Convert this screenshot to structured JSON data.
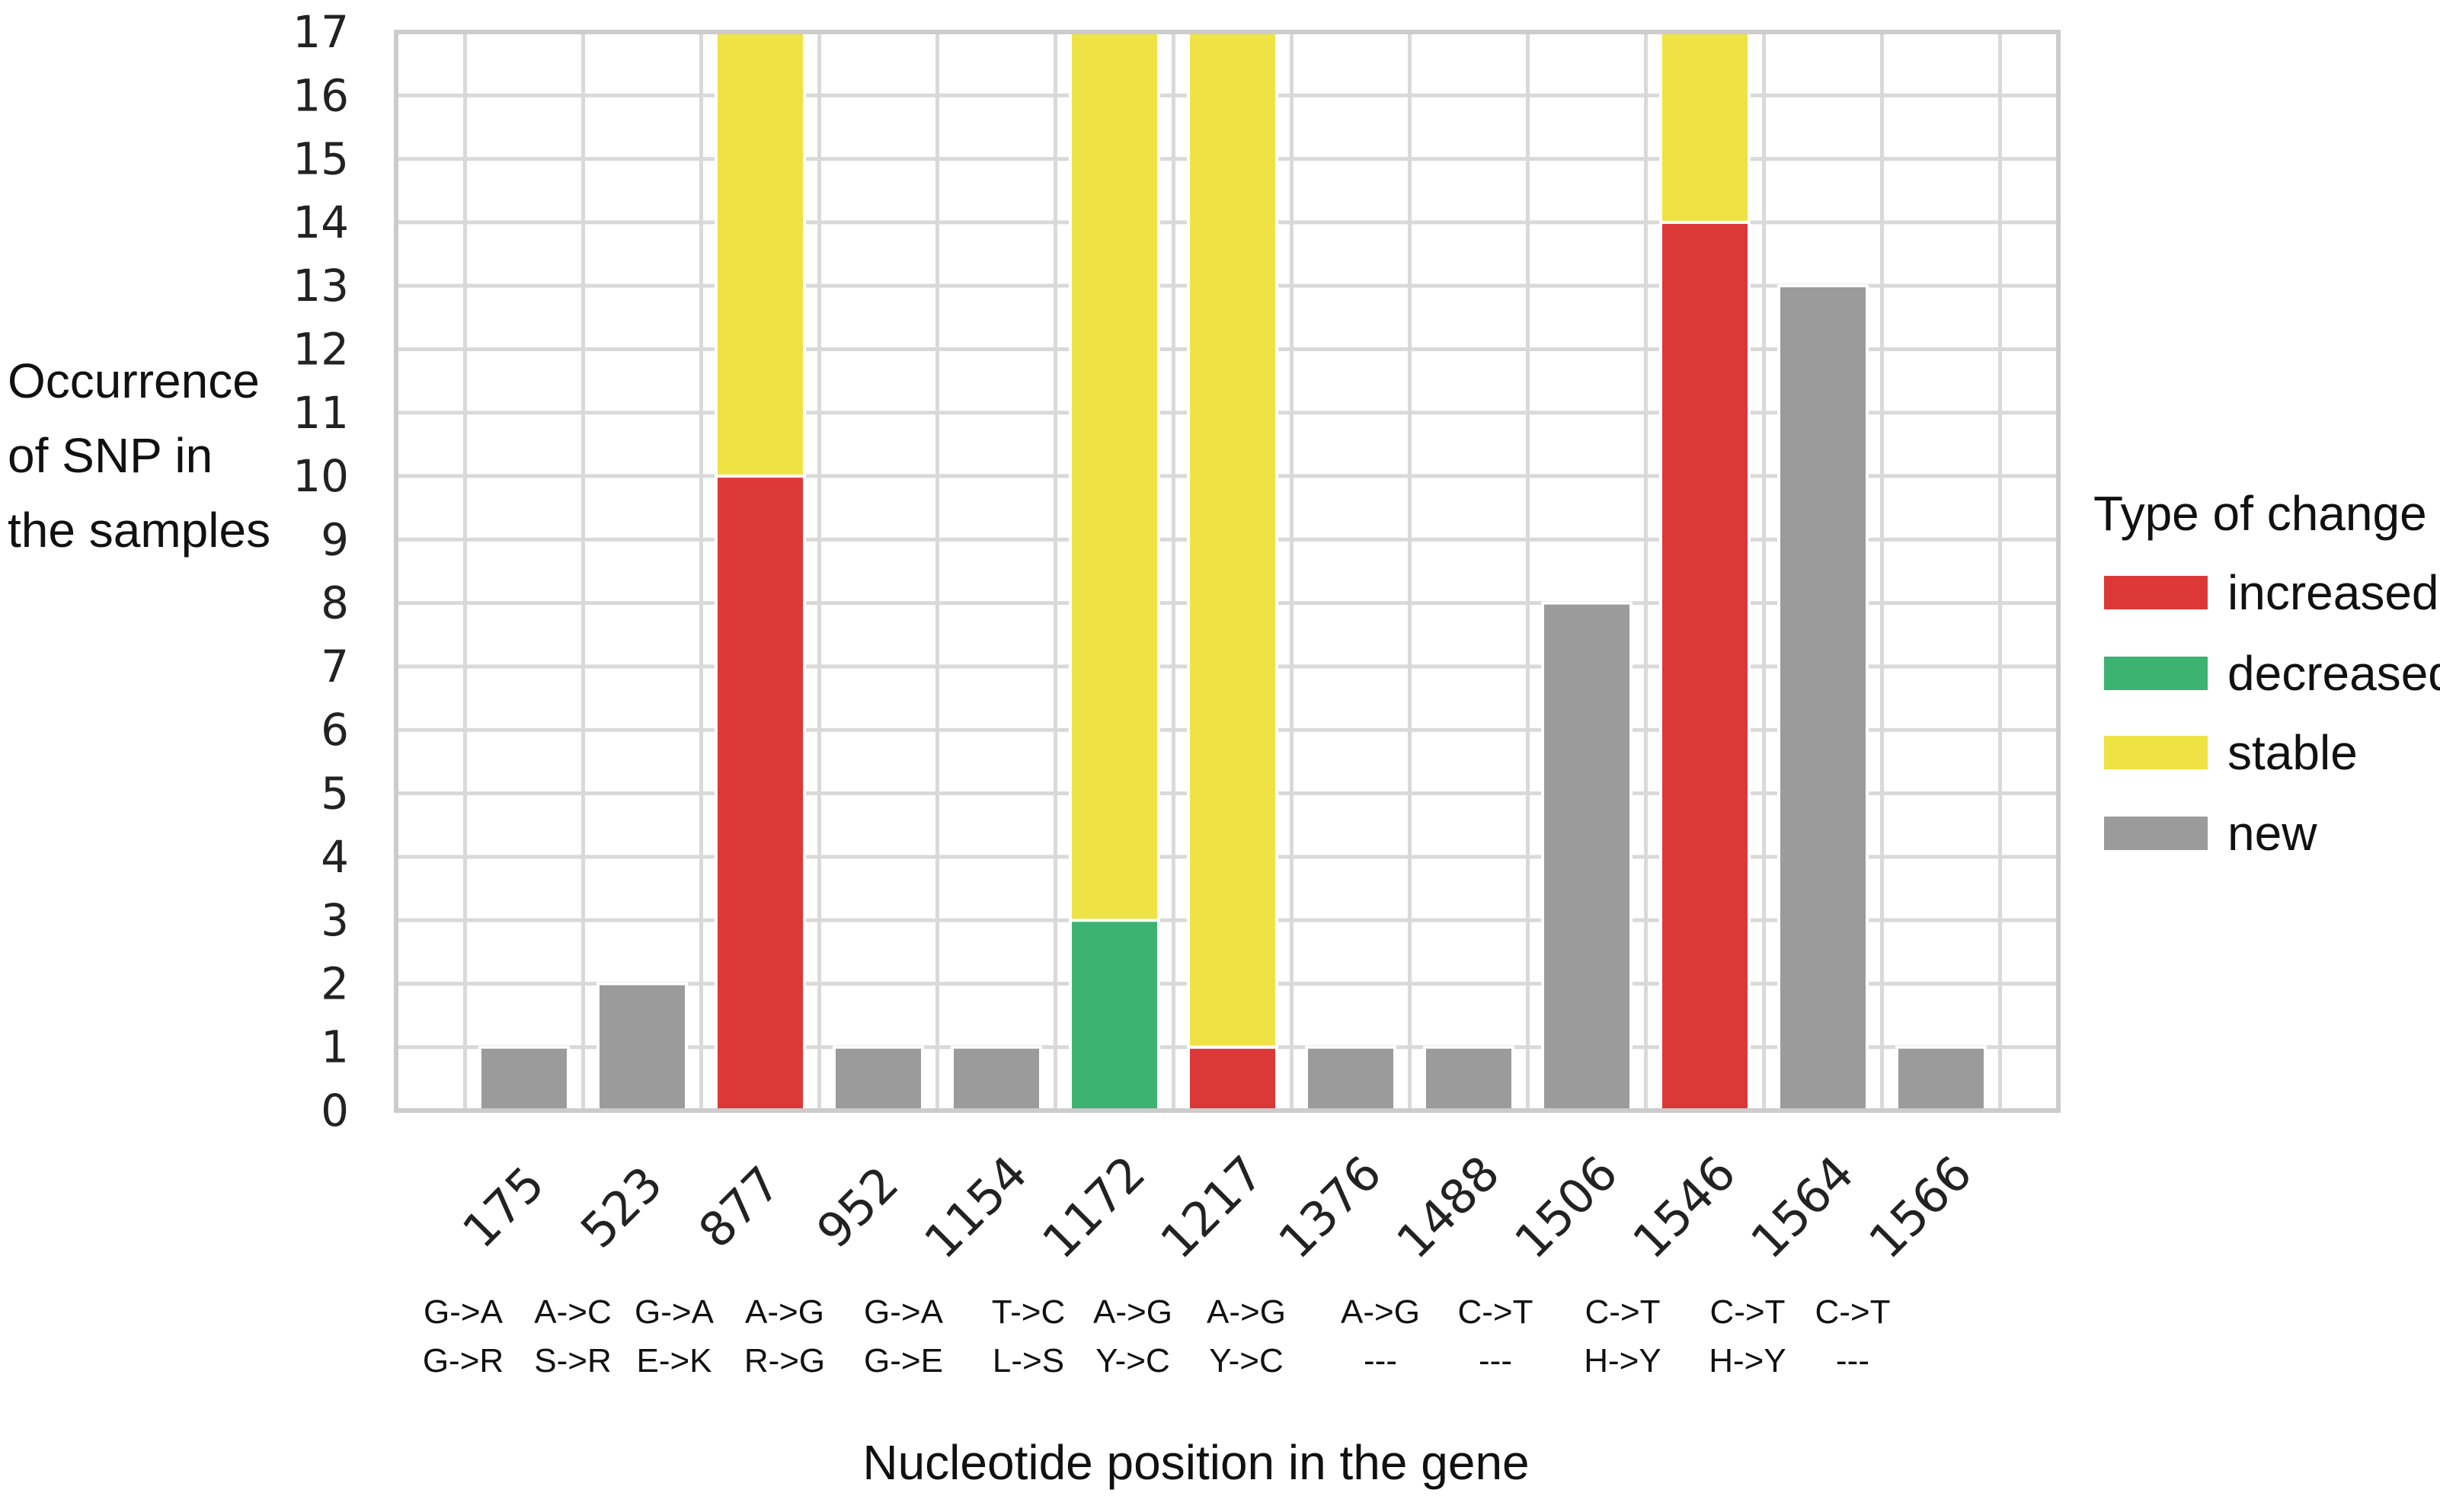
{
  "chart_data": {
    "type": "bar",
    "stacked": true,
    "title": "",
    "xlabel": "Nucleotide position in the gene",
    "ylabel_lines": [
      "Occurrence",
      "of SNP in",
      "the samples"
    ],
    "ylim": [
      0,
      17
    ],
    "yticks": [
      0,
      1,
      2,
      3,
      4,
      5,
      6,
      7,
      8,
      9,
      10,
      11,
      12,
      13,
      14,
      15,
      16,
      17
    ],
    "grid": true,
    "categories": [
      "175",
      "523",
      "877",
      "952",
      "1154",
      "1172",
      "1217",
      "1376",
      "1488",
      "1506",
      "1546",
      "1564",
      "1566"
    ],
    "nucleotide_changes": [
      "G->A",
      "A->C",
      "G->A",
      "A->G",
      "G->A",
      "T->C",
      "A->G",
      "A->G",
      "A->G",
      "C->T",
      "C->T",
      "C->T",
      "C->T"
    ],
    "amino_acid_changes": [
      "G->R",
      "S->R",
      "E->K",
      "R->G",
      "G->E",
      "L->S",
      "Y->C",
      "Y->C",
      "---",
      "---",
      "H->Y",
      "H->Y",
      "---"
    ],
    "series": [
      {
        "name": "increased",
        "color": "#dd3838",
        "values": [
          0,
          0,
          10,
          0,
          0,
          0,
          1,
          0,
          0,
          0,
          14,
          0,
          0
        ]
      },
      {
        "name": "decreased",
        "color": "#3cb371",
        "values": [
          0,
          0,
          0,
          0,
          0,
          3,
          0,
          0,
          0,
          0,
          0,
          0,
          0
        ]
      },
      {
        "name": "stable",
        "color": "#efe244",
        "values": [
          0,
          0,
          7,
          0,
          0,
          14,
          16,
          0,
          0,
          0,
          3,
          0,
          0
        ]
      },
      {
        "name": "new",
        "color": "#9b9b9b",
        "values": [
          1,
          2,
          0,
          1,
          1,
          0,
          0,
          1,
          1,
          8,
          0,
          13,
          1
        ]
      }
    ],
    "legend": {
      "title": "Type of change",
      "position": "right"
    }
  }
}
